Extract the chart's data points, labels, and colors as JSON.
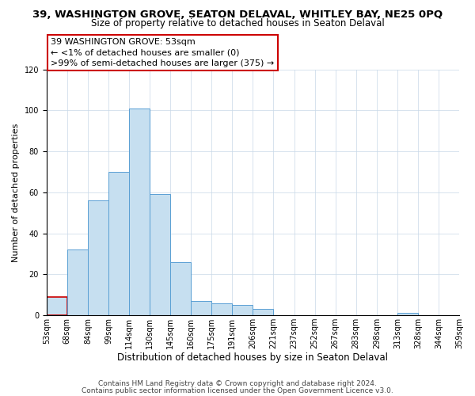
{
  "title": "39, WASHINGTON GROVE, SEATON DELAVAL, WHITLEY BAY, NE25 0PQ",
  "subtitle": "Size of property relative to detached houses in Seaton Delaval",
  "xlabel": "Distribution of detached houses by size in Seaton Delaval",
  "ylabel": "Number of detached properties",
  "bar_values": [
    9,
    32,
    56,
    70,
    101,
    59,
    26,
    7,
    6,
    5,
    3,
    0,
    0,
    0,
    0,
    0,
    0,
    1,
    0,
    0
  ],
  "bin_labels": [
    "53sqm",
    "68sqm",
    "84sqm",
    "99sqm",
    "114sqm",
    "130sqm",
    "145sqm",
    "160sqm",
    "175sqm",
    "191sqm",
    "206sqm",
    "221sqm",
    "237sqm",
    "252sqm",
    "267sqm",
    "283sqm",
    "298sqm",
    "313sqm",
    "328sqm",
    "344sqm",
    "359sqm"
  ],
  "bar_color": "#c6dff0",
  "bar_edge_color": "#5a9fd4",
  "highlight_bar_edge_color": "#cc0000",
  "annotation_box_text": "39 WASHINGTON GROVE: 53sqm\n← <1% of detached houses are smaller (0)\n>99% of semi-detached houses are larger (375) →",
  "annotation_box_edge_color": "#cc0000",
  "annotation_box_facecolor": "#ffffff",
  "ylim": [
    0,
    120
  ],
  "yticks": [
    0,
    20,
    40,
    60,
    80,
    100,
    120
  ],
  "footer_line1": "Contains HM Land Registry data © Crown copyright and database right 2024.",
  "footer_line2": "Contains public sector information licensed under the Open Government Licence v3.0.",
  "background_color": "#ffffff",
  "grid_color": "#c8d8e8",
  "title_fontsize": 9.5,
  "subtitle_fontsize": 8.5,
  "xlabel_fontsize": 8.5,
  "ylabel_fontsize": 8,
  "tick_fontsize": 7,
  "annotation_fontsize": 8,
  "footer_fontsize": 6.5
}
